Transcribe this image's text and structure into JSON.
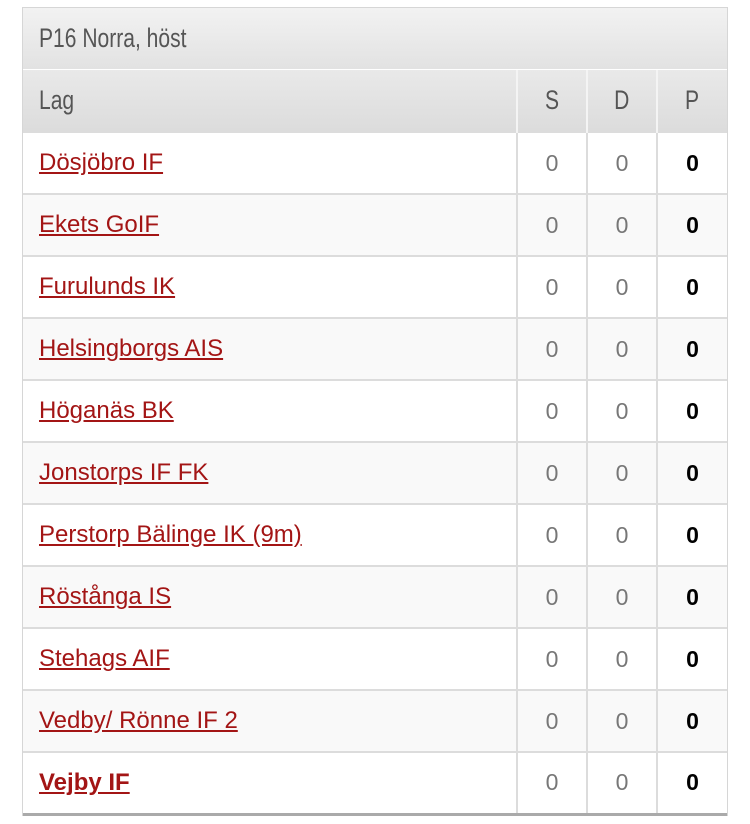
{
  "title": "P16 Norra, höst",
  "columns": {
    "team": "Lag",
    "s": "S",
    "d": "D",
    "p": "P"
  },
  "colors": {
    "link": "#a31515",
    "header_bg": "#e2e2e2"
  },
  "rows": [
    {
      "team": "Dösjöbro IF",
      "s": "0",
      "d": "0",
      "p": "0"
    },
    {
      "team": "Ekets GoIF",
      "s": "0",
      "d": "0",
      "p": "0"
    },
    {
      "team": "Furulunds IK",
      "s": "0",
      "d": "0",
      "p": "0"
    },
    {
      "team": "Helsingborgs AIS",
      "s": "0",
      "d": "0",
      "p": "0"
    },
    {
      "team": "Höganäs BK",
      "s": "0",
      "d": "0",
      "p": "0"
    },
    {
      "team": "Jonstorps IF FK",
      "s": "0",
      "d": "0",
      "p": "0"
    },
    {
      "team": "Perstorp Bälinge IK (9m)",
      "s": "0",
      "d": "0",
      "p": "0"
    },
    {
      "team": "Röstånga IS",
      "s": "0",
      "d": "0",
      "p": "0"
    },
    {
      "team": "Stehags AIF",
      "s": "0",
      "d": "0",
      "p": "0"
    },
    {
      "team": "Vedby/ Rönne IF 2",
      "s": "0",
      "d": "0",
      "p": "0"
    },
    {
      "team": "Vejby IF",
      "s": "0",
      "d": "0",
      "p": "0",
      "highlighted": true
    }
  ]
}
